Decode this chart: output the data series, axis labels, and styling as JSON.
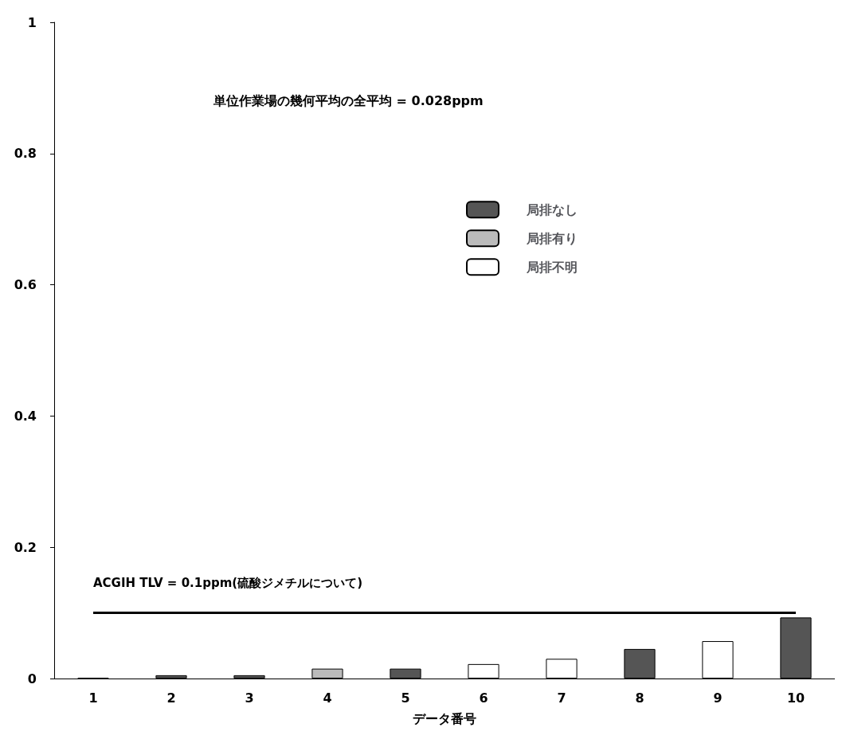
{
  "chart_data": {
    "type": "bar",
    "xlabel": "データ番号",
    "categories": [
      "1",
      "2",
      "3",
      "4",
      "5",
      "6",
      "7",
      "8",
      "9",
      "10"
    ],
    "series": [
      {
        "name": "局排なし",
        "color": "#555555",
        "values": [
          0.001,
          0.005,
          0.005,
          null,
          0.015,
          null,
          null,
          0.045,
          null,
          0.093
        ]
      },
      {
        "name": "局排有り",
        "color": "#bbbbbb",
        "values": [
          null,
          null,
          null,
          0.015,
          null,
          null,
          null,
          null,
          null,
          null
        ]
      },
      {
        "name": "局排不明",
        "color": "#ffffff",
        "values": [
          null,
          null,
          null,
          null,
          null,
          0.022,
          0.03,
          null,
          0.057,
          null
        ]
      }
    ],
    "ylim": [
      0,
      1
    ],
    "yticks": [
      0,
      0.2,
      0.4,
      0.6,
      0.8,
      1
    ],
    "grid": false,
    "legend": "right",
    "ref_lines": [
      {
        "axis": "y",
        "value": 0.1,
        "label": "ACGIH TLV = 0.1ppm(硫酸ジメチルについて)",
        "color": "#000000"
      }
    ],
    "annotations": [
      "単位作業場の幾何平均の全平均 = 0.028ppm"
    ]
  }
}
